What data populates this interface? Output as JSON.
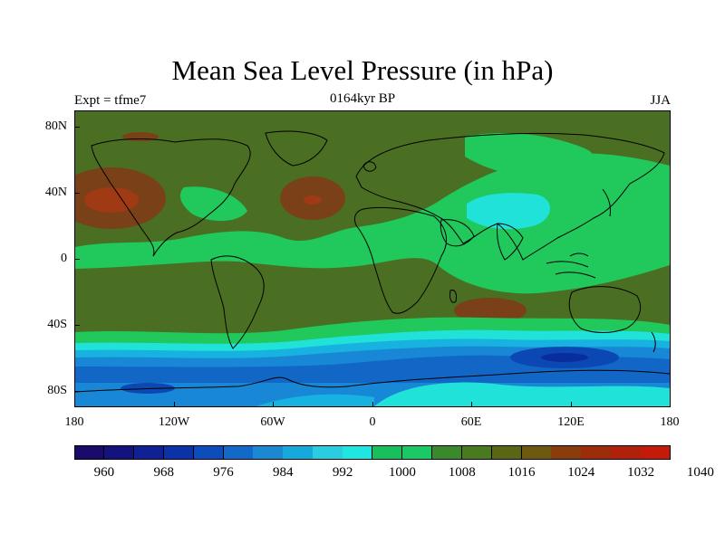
{
  "title": "Mean Sea Level Pressure (in hPa)",
  "subtitle": "0164kyr BP",
  "left_label": "Expt = tfme7",
  "right_label": "JJA",
  "y_ticks": [
    "80N",
    "40N",
    "0",
    "40S",
    "80S"
  ],
  "x_ticks": [
    "180",
    "120W",
    "60W",
    "0",
    "60E",
    "120E",
    "180"
  ],
  "colorbar": {
    "labels": [
      "960",
      "968",
      "976",
      "984",
      "992",
      "1000",
      "1008",
      "1016",
      "1024",
      "1032",
      "1040"
    ],
    "colors": [
      "#1a0a6b",
      "#14127e",
      "#102095",
      "#0a33a8",
      "#0c4dbb",
      "#1269c8",
      "#1a89d2",
      "#16aadc",
      "#2acde0",
      "#1fe6e0",
      "#17c05b",
      "#1ac865",
      "#3a8a2b",
      "#4a7a20",
      "#5b6615",
      "#6e5a0e",
      "#8a3d0a",
      "#9c2c0a",
      "#b0200a",
      "#c41a0a"
    ]
  },
  "map": {
    "projection": "cylindrical-equidistant",
    "lon_range": [
      -180,
      180
    ],
    "lat_range": [
      -90,
      90
    ],
    "colors": {
      "base": "#4a6e22",
      "high": "#7a4018",
      "high_core": "#a03a14",
      "low_green": "#21c85c",
      "cyan": "#20e2d8",
      "light_blue": "#18b2e0",
      "mid_blue": "#1888d6",
      "blue": "#1166c6",
      "dark_blue": "#0c48b4",
      "deep_blue": "#0a2d9e"
    }
  }
}
